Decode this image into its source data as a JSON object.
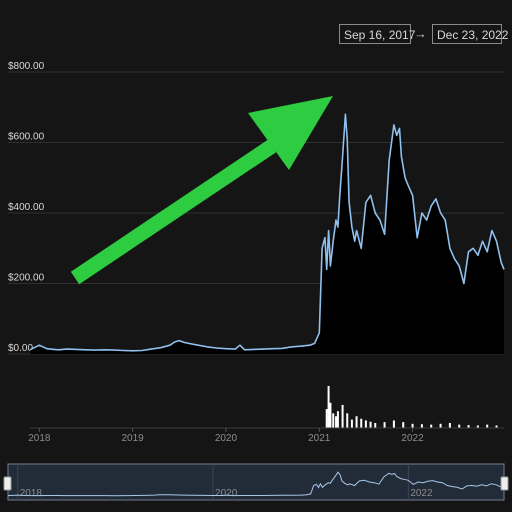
{
  "range": {
    "from": "Sep 16, 2017",
    "to": "Dec 23, 2022",
    "arrow": "→"
  },
  "colors": {
    "line": "#8fc0ee",
    "arrow": "#2ecc40",
    "volume": "#ffffff",
    "navigator_line": "#a9c7e8"
  },
  "chart_data": {
    "type": "area",
    "y_tick_labels": [
      "$0.00",
      "$200.00",
      "$400.00",
      "$600.00",
      "$800.00"
    ],
    "y_ticks": [
      0,
      200,
      400,
      600,
      800
    ],
    "ylim": [
      0,
      800
    ],
    "x_tick_labels": [
      "2018",
      "2019",
      "2020",
      "2021",
      "2022"
    ],
    "x_ticks": [
      2018,
      2019,
      2020,
      2021,
      2022
    ],
    "xlim": [
      2017.9,
      2022.98
    ],
    "navigator_labels": [
      "2018",
      "2020",
      "2022"
    ],
    "navigator_ticks": [
      2018,
      2020,
      2022
    ],
    "series": [
      {
        "x": [
          2017.9,
          2018.0,
          2018.08,
          2018.2,
          2018.3,
          2018.4,
          2018.5,
          2018.6,
          2018.7,
          2018.8,
          2018.9,
          2019.0,
          2019.1,
          2019.2,
          2019.3,
          2019.4,
          2019.45,
          2019.5,
          2019.55,
          2019.6,
          2019.7,
          2019.8,
          2019.9,
          2020.0,
          2020.1,
          2020.15,
          2020.2,
          2020.3,
          2020.4,
          2020.5,
          2020.6,
          2020.7,
          2020.8,
          2020.9,
          2020.95,
          2021.0,
          2021.03,
          2021.06,
          2021.08,
          2021.1,
          2021.12,
          2021.15,
          2021.18,
          2021.2,
          2021.22,
          2021.25,
          2021.28,
          2021.3,
          2021.32,
          2021.35,
          2021.38,
          2021.4,
          2021.45,
          2021.5,
          2021.55,
          2021.6,
          2021.65,
          2021.7,
          2021.75,
          2021.8,
          2021.83,
          2021.86,
          2021.88,
          2021.92,
          2021.95,
          2022.0,
          2022.05,
          2022.1,
          2022.15,
          2022.2,
          2022.25,
          2022.3,
          2022.35,
          2022.4,
          2022.45,
          2022.5,
          2022.55,
          2022.6,
          2022.65,
          2022.7,
          2022.75,
          2022.8,
          2022.85,
          2022.9,
          2022.95,
          2022.98
        ],
        "y": [
          12,
          25,
          15,
          12,
          14,
          13,
          12,
          11,
          12,
          11,
          10,
          9,
          10,
          14,
          18,
          25,
          34,
          38,
          33,
          30,
          25,
          20,
          17,
          15,
          14,
          25,
          12,
          13,
          14,
          15,
          16,
          20,
          22,
          25,
          30,
          60,
          300,
          330,
          240,
          350,
          250,
          320,
          380,
          360,
          450,
          560,
          680,
          610,
          430,
          360,
          320,
          350,
          300,
          430,
          450,
          400,
          380,
          340,
          550,
          650,
          620,
          640,
          560,
          500,
          480,
          450,
          330,
          400,
          380,
          420,
          440,
          400,
          380,
          300,
          270,
          250,
          200,
          290,
          300,
          280,
          320,
          290,
          350,
          320,
          260,
          240
        ]
      }
    ],
    "volume": {
      "x": [
        2021.08,
        2021.1,
        2021.12,
        2021.15,
        2021.18,
        2021.2,
        2021.25,
        2021.3,
        2021.35,
        2021.4,
        2021.45,
        2021.5,
        2021.55,
        2021.6,
        2021.7,
        2021.8,
        2021.9,
        2022.0,
        2022.1,
        2022.2,
        2022.3,
        2022.4,
        2022.5,
        2022.6,
        2022.7,
        2022.8,
        2022.9
      ],
      "values": [
        45,
        100,
        60,
        35,
        28,
        40,
        55,
        35,
        20,
        28,
        22,
        18,
        15,
        12,
        14,
        18,
        14,
        10,
        9,
        8,
        10,
        12,
        8,
        7,
        6,
        8,
        6
      ]
    }
  }
}
